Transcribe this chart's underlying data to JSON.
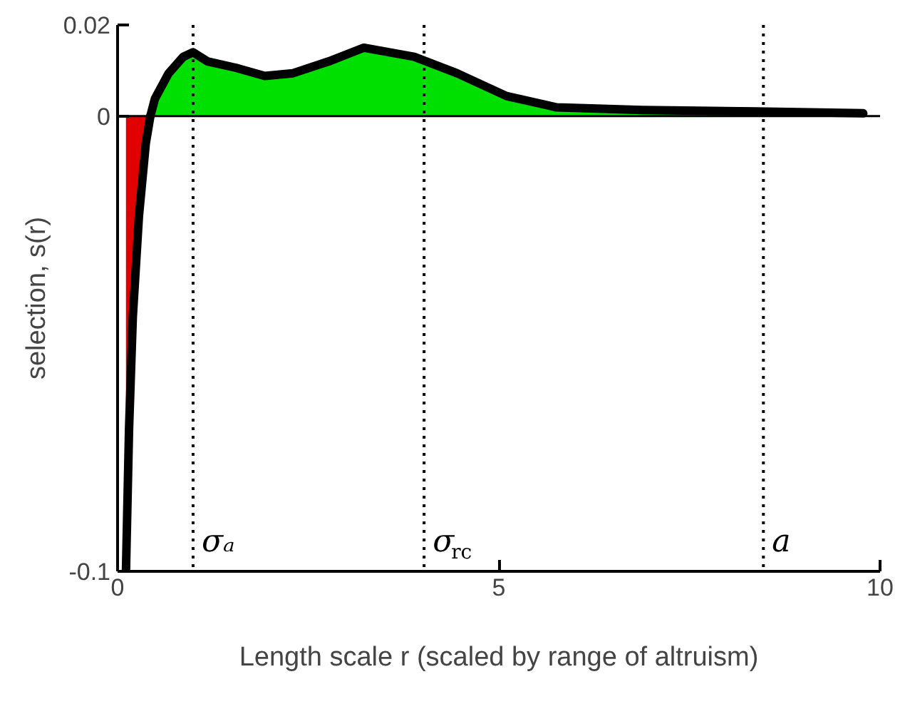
{
  "chart_data": {
    "type": "area",
    "xlabel": "Length scale r (scaled by range of altruism)",
    "ylabel": "selection, s(r)",
    "series": [
      {
        "color": "#e00000",
        "x": [
          0.11,
          0.15,
          0.2,
          0.28,
          0.37,
          0.43
        ],
        "values": [
          -0.1,
          -0.069,
          -0.044,
          -0.022,
          -0.006,
          0
        ]
      },
      {
        "color": "#00e000",
        "x": [
          0.43,
          0.49,
          0.67,
          0.86,
          0.99,
          1.18,
          1.55,
          1.93,
          2.3,
          2.77,
          3.23,
          3.89,
          4.45,
          5.1,
          5.76,
          6.88,
          8.37,
          9.78
        ],
        "values": [
          0,
          0.0038,
          0.0094,
          0.013,
          0.014,
          0.012,
          0.0106,
          0.0088,
          0.0094,
          0.012,
          0.015,
          0.013,
          0.0094,
          0.0044,
          0.0019,
          0.0013,
          0.001,
          0.0006
        ]
      }
    ],
    "xlim": [
      0,
      10
    ],
    "xticks": [
      0,
      5,
      10
    ],
    "ylim": [
      -0.1,
      0.02
    ],
    "yticks": [
      -0.1,
      0,
      0.02
    ],
    "grid": false,
    "ref_lines": [
      {
        "axis": "y",
        "value": 0,
        "label": null,
        "line_style": "solid"
      },
      {
        "axis": "x",
        "value": 0.99,
        "label": "σₐ",
        "line_style": "dotted"
      },
      {
        "axis": "x",
        "value": 4.02,
        "label": "σ$_{rc}$",
        "line_style": "dotted"
      },
      {
        "axis": "x",
        "value": 8.47,
        "label": "a",
        "line_style": "dotted"
      }
    ]
  }
}
